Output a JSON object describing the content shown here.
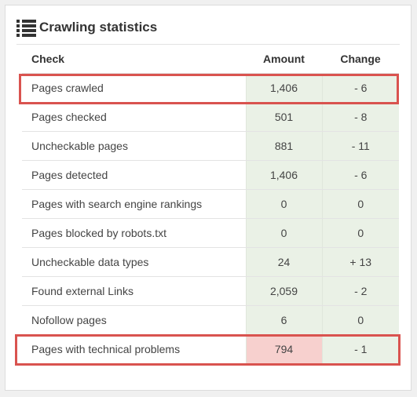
{
  "panel": {
    "title": "Crawling statistics",
    "icon": "list-icon"
  },
  "table": {
    "headers": {
      "check": "Check",
      "amount": "Amount",
      "change": "Change"
    },
    "rows": [
      {
        "check": "Pages crawled",
        "amount": "1,406",
        "change": "- 6",
        "highlighted": true
      },
      {
        "check": "Pages checked",
        "amount": "501",
        "change": "- 8"
      },
      {
        "check": "Uncheckable pages",
        "amount": "881",
        "change": "- 11"
      },
      {
        "check": "Pages detected",
        "amount": "1,406",
        "change": "- 6"
      },
      {
        "check": "Pages with search engine rankings",
        "amount": "0",
        "change": "0"
      },
      {
        "check": "Pages blocked by robots.txt",
        "amount": "0",
        "change": "0"
      },
      {
        "check": "Uncheckable data types",
        "amount": "24",
        "change": "+ 13"
      },
      {
        "check": "Found external Links",
        "amount": "2,059",
        "change": "- 2"
      },
      {
        "check": "Nofollow pages",
        "amount": "6",
        "change": "0"
      },
      {
        "check": "Pages with technical problems",
        "amount": "794",
        "change": "- 1",
        "highlighted": true,
        "problem": true
      }
    ]
  },
  "colors": {
    "value_cell_bg": "#eaf1e6",
    "problem_cell_bg": "#f7d0ce",
    "highlight_border": "#d9534f"
  }
}
